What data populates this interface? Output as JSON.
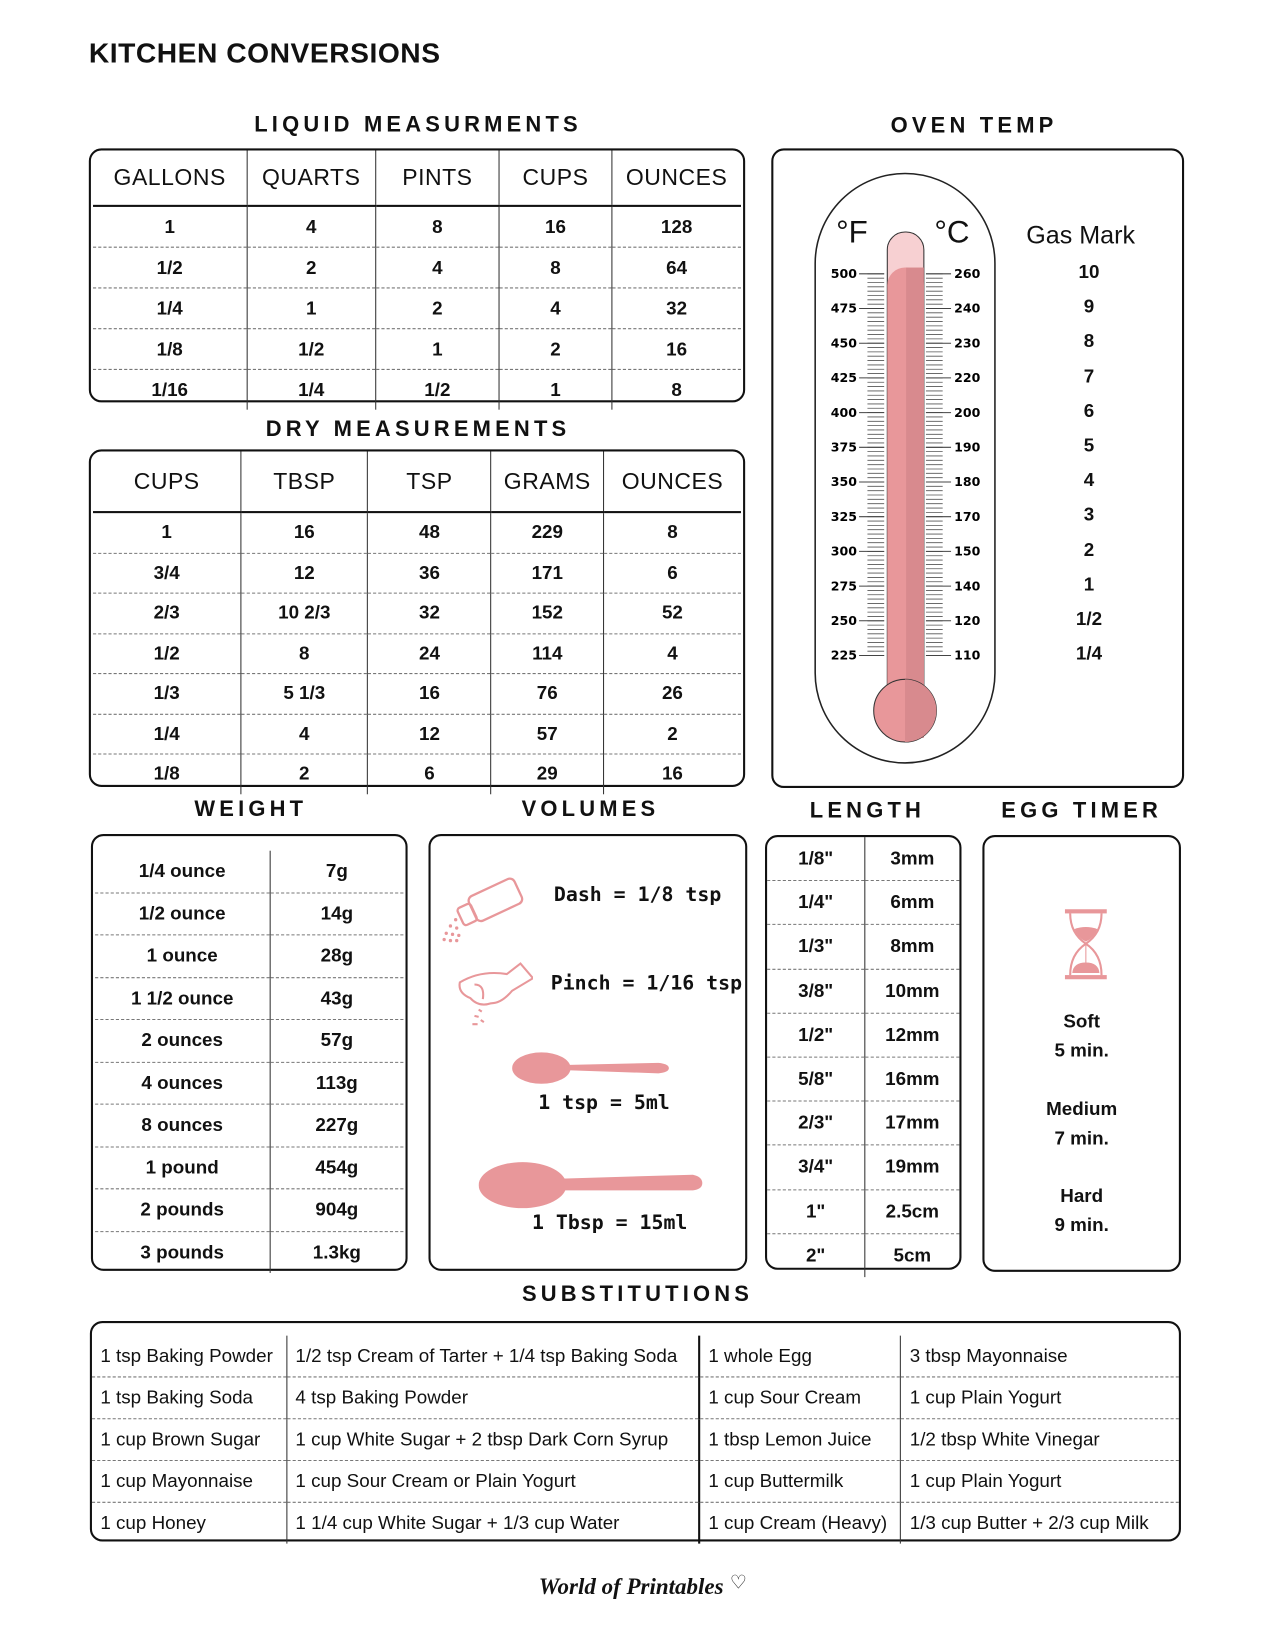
{
  "title": "KITCHEN CONVERSIONS",
  "colors": {
    "accent": "#e8979a",
    "accent_light": "#f7d0d2",
    "accent_dark": "#d88a8e",
    "border": "#111111"
  },
  "liquid": {
    "heading": "LIQUID MEASURMENTS",
    "columns": [
      "GALLONS",
      "QUARTS",
      "PINTS",
      "CUPS",
      "OUNCES"
    ],
    "rows": [
      [
        "1",
        "4",
        "8",
        "16",
        "128"
      ],
      [
        "1/2",
        "2",
        "4",
        "8",
        "64"
      ],
      [
        "1/4",
        "1",
        "2",
        "4",
        "32"
      ],
      [
        "1/8",
        "1/2",
        "1",
        "2",
        "16"
      ],
      [
        "1/16",
        "1/4",
        "1/2",
        "1",
        "8"
      ]
    ]
  },
  "dry": {
    "heading": "DRY MEASUREMENTS",
    "columns": [
      "CUPS",
      "TBSP",
      "TSP",
      "GRAMS",
      "OUNCES"
    ],
    "rows": [
      [
        "1",
        "16",
        "48",
        "229",
        "8"
      ],
      [
        "3/4",
        "12",
        "36",
        "171",
        "6"
      ],
      [
        "2/3",
        "10 2/3",
        "32",
        "152",
        "52"
      ],
      [
        "1/2",
        "8",
        "24",
        "114",
        "4"
      ],
      [
        "1/3",
        "5 1/3",
        "16",
        "76",
        "26"
      ],
      [
        "1/4",
        "4",
        "12",
        "57",
        "2"
      ],
      [
        "1/8",
        "2",
        "6",
        "29",
        "16"
      ]
    ]
  },
  "oven": {
    "heading": "OVEN TEMP",
    "f_label": "°F",
    "c_label": "°C",
    "gas_label": "Gas Mark",
    "fahrenheit": [
      "500",
      "475",
      "450",
      "425",
      "400",
      "375",
      "350",
      "325",
      "300",
      "275",
      "250",
      "225"
    ],
    "celsius": [
      "260",
      "240",
      "230",
      "220",
      "200",
      "190",
      "180",
      "170",
      "150",
      "140",
      "120",
      "110"
    ],
    "gas_mark": [
      "10",
      "9",
      "8",
      "7",
      "6",
      "5",
      "4",
      "3",
      "2",
      "1",
      "1/2",
      "1/4"
    ]
  },
  "weight": {
    "heading": "WEIGHT",
    "rows": [
      [
        "1/4 ounce",
        "7g"
      ],
      [
        "1/2 ounce",
        "14g"
      ],
      [
        "1 ounce",
        "28g"
      ],
      [
        "1 1/2 ounce",
        "43g"
      ],
      [
        "2 ounces",
        "57g"
      ],
      [
        "4 ounces",
        "113g"
      ],
      [
        "8 ounces",
        "227g"
      ],
      [
        "1 pound",
        "454g"
      ],
      [
        "2 pounds",
        "904g"
      ],
      [
        "3 pounds",
        "1.3kg"
      ]
    ]
  },
  "volumes": {
    "heading": "VOLUMES",
    "dash": "Dash = 1/8 tsp",
    "pinch": "Pinch = 1/16 tsp",
    "tsp": "1 tsp = 5ml",
    "tbsp": "1 Tbsp = 15ml",
    "icons": [
      "salt-shaker-icon",
      "pinching-hand-icon",
      "teaspoon-icon",
      "tablespoon-icon"
    ]
  },
  "length": {
    "heading": "LENGTH",
    "rows": [
      [
        "1/8\"",
        "3mm"
      ],
      [
        "1/4\"",
        "6mm"
      ],
      [
        "1/3\"",
        "8mm"
      ],
      [
        "3/8\"",
        "10mm"
      ],
      [
        "1/2\"",
        "12mm"
      ],
      [
        "5/8\"",
        "16mm"
      ],
      [
        "2/3\"",
        "17mm"
      ],
      [
        "3/4\"",
        "19mm"
      ],
      [
        "1\"",
        "2.5cm"
      ],
      [
        "2\"",
        "5cm"
      ]
    ]
  },
  "egg_timer": {
    "heading": "EGG TIMER",
    "icon": "hourglass-icon",
    "items": [
      {
        "label": "Soft",
        "time": "5 min."
      },
      {
        "label": "Medium",
        "time": "7 min."
      },
      {
        "label": "Hard",
        "time": "9 min."
      }
    ]
  },
  "substitutions": {
    "heading": "SUBSTITUTIONS",
    "rows": [
      [
        "1 tsp Baking Powder",
        "1/2 tsp Cream of Tarter + 1/4 tsp Baking Soda",
        "1 whole Egg",
        "3 tbsp  Mayonnaise"
      ],
      [
        "1 tsp Baking Soda",
        "4 tsp Baking Powder",
        "1 cup Sour Cream",
        "1 cup Plain Yogurt"
      ],
      [
        "1 cup Brown Sugar",
        "1 cup White Sugar + 2 tbsp Dark Corn Syrup",
        "1 tbsp Lemon Juice",
        "1/2 tbsp White Vinegar"
      ],
      [
        "1 cup Mayonnaise",
        "1 cup Sour Cream or Plain Yogurt",
        "1 cup Buttermilk",
        "1 cup Plain Yogurt"
      ],
      [
        "1 cup Honey",
        "1 1/4 cup White Sugar + 1/3 cup Water",
        "1 cup Cream (Heavy)",
        "1/3 cup Butter + 2/3 cup Milk"
      ]
    ]
  },
  "logo": "World of Printables"
}
